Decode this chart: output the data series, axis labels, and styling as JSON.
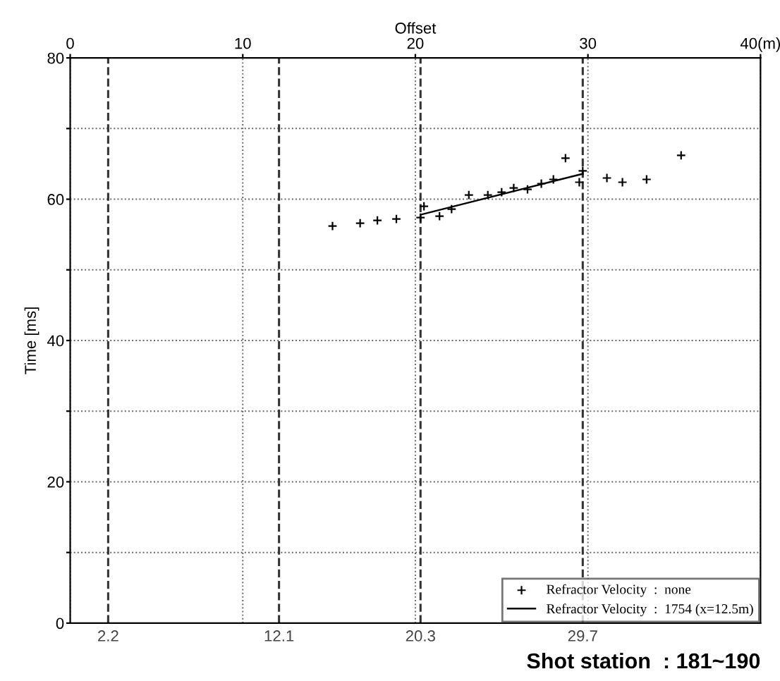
{
  "chart_data": {
    "type": "scatter",
    "xlabel": "Offset",
    "ylabel": "Time [ms]",
    "xlim": [
      0,
      40
    ],
    "xticks": [
      0,
      10,
      20,
      30,
      {
        "value": 40,
        "label": "40(m)"
      }
    ],
    "ylim": [
      0,
      80
    ],
    "yticks": [
      0,
      {
        "value": 10,
        "label": null
      },
      20,
      {
        "value": 30,
        "label": null
      },
      40,
      {
        "value": 50,
        "label": null
      },
      60,
      {
        "value": 70,
        "label": null
      },
      80
    ],
    "grid": true,
    "legend": "bottom right",
    "series": [
      {
        "name": "Refractor Velocity  :  none",
        "marker": "cross",
        "color": "#000000",
        "x": [
          15.2,
          16.8,
          17.8,
          18.9,
          20.3,
          21.4,
          22.1,
          20.5,
          23.1,
          24.2,
          25.0,
          25.7,
          26.5,
          27.3,
          28.0,
          28.7,
          29.5,
          29.7,
          31.1,
          32.0,
          33.4,
          35.4
        ],
        "values": [
          56.2,
          56.6,
          57.0,
          57.2,
          57.4,
          57.6,
          58.6,
          59.0,
          60.6,
          60.6,
          61.0,
          61.6,
          61.4,
          62.2,
          62.8,
          65.8,
          62.4,
          64.0,
          63.0,
          62.4,
          62.8,
          66.2
        ]
      },
      {
        "name": "Refractor Velocity  :  1754 (x=12.5m)",
        "type": "line",
        "line_style": "solid",
        "color": "#000000",
        "x": [
          20.3,
          29.7
        ],
        "values": [
          57.8,
          63.6
        ]
      }
    ],
    "ref_lines": [
      {
        "axis": "x",
        "value": 2.2,
        "label": "2.2",
        "color": "#333333",
        "line_style": "dashed"
      },
      {
        "axis": "x",
        "value": 12.1,
        "label": "12.1",
        "color": "#333333",
        "line_style": "dashed"
      },
      {
        "axis": "x",
        "value": 20.3,
        "label": "20.3",
        "color": "#333333",
        "line_style": "dashed"
      },
      {
        "axis": "x",
        "value": 29.7,
        "label": "29.7",
        "color": "#333333",
        "line_style": "dashed"
      }
    ],
    "annotations": [
      "Shot station  : 181~190"
    ]
  }
}
